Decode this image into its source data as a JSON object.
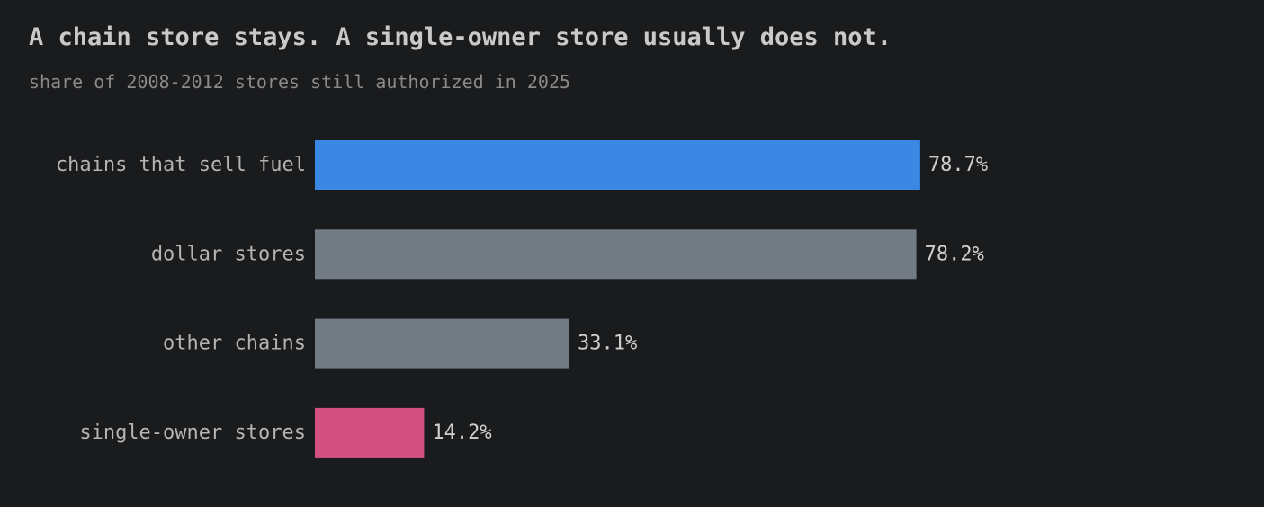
{
  "header": {
    "title": "A chain store stays. A single-owner store usually does not.",
    "subtitle": "share of 2008-2012 stores still authorized in 2025"
  },
  "chart_data": {
    "type": "bar",
    "orientation": "horizontal",
    "title": "A chain store stays. A single-owner store usually does not.",
    "subtitle": "share of 2008-2012 stores still authorized in 2025",
    "xlabel": "",
    "ylabel": "",
    "xlim": [
      0,
      100
    ],
    "grid": false,
    "legend": "none",
    "unit_suffix": "%",
    "categories": [
      "chains that sell fuel",
      "dollar stores",
      "other chains",
      "single-owner stores"
    ],
    "values": [
      78.7,
      78.2,
      33.1,
      14.2
    ],
    "value_labels": [
      "78.7%",
      "78.2%",
      "33.1%",
      "14.2%"
    ],
    "colors": [
      "#3a87e4",
      "#727a84",
      "#727a84",
      "#d4517f"
    ]
  },
  "colors": {
    "background": "#1a1b1d",
    "highlight_top": "#3a87e4",
    "neutral": "#727a84",
    "highlight_bottom": "#d4517f"
  }
}
